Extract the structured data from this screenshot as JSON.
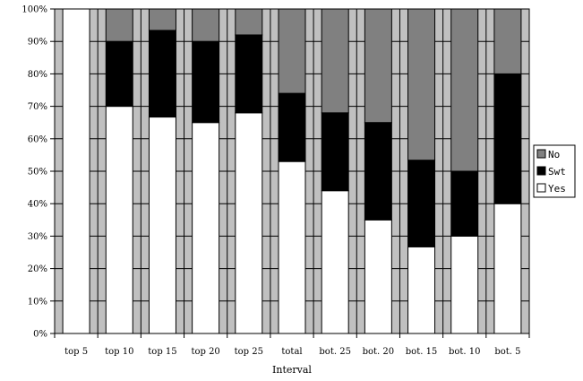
{
  "chart_data": {
    "type": "bar",
    "stacked": true,
    "percent_stacked": true,
    "categories": [
      "top 5",
      "top 10",
      "top 15",
      "top 20",
      "top 25",
      "total",
      "bot. 25",
      "bot. 20",
      "bot. 15",
      "bot. 10",
      "bot. 5"
    ],
    "series": [
      {
        "name": "Yes",
        "color": "#ffffff",
        "values": [
          100,
          70,
          66.7,
          65,
          68,
          53,
          44,
          35,
          26.7,
          30,
          40
        ]
      },
      {
        "name": "Swt",
        "color": "#000000",
        "values": [
          0,
          20,
          26.7,
          25,
          24,
          21,
          24,
          30,
          26.7,
          20,
          40
        ]
      },
      {
        "name": "No",
        "color": "#808080",
        "values": [
          0,
          10,
          6.6,
          10,
          8,
          26,
          32,
          35,
          46.6,
          50,
          20
        ]
      }
    ],
    "legend_order": [
      "No",
      "Swt",
      "Yes"
    ],
    "ylim": [
      0,
      100
    ],
    "y_ticks": [
      "0%",
      "10%",
      "20%",
      "30%",
      "40%",
      "50%",
      "60%",
      "70%",
      "80%",
      "90%",
      "100%"
    ],
    "xlabel": "Interval",
    "ylabel": "",
    "title": "",
    "grid": true,
    "legend_position": "right",
    "plot_background": "#c0c0c0"
  }
}
